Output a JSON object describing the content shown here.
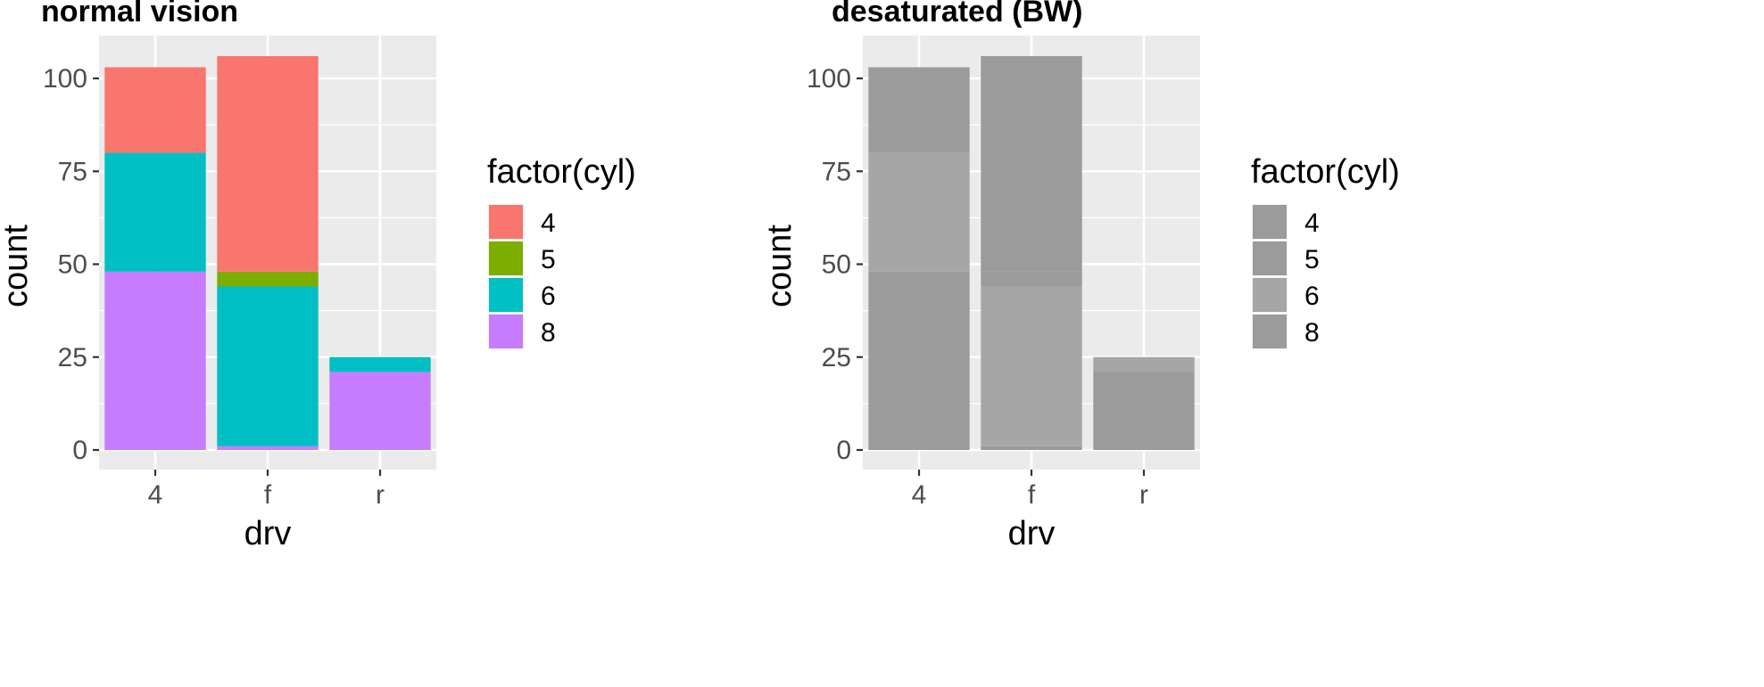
{
  "chart_data": [
    {
      "type": "bar",
      "stacked": true,
      "title": "normal vision",
      "xlabel": "drv",
      "ylabel": "count",
      "categories": [
        "4",
        "f",
        "r"
      ],
      "yticks": [
        0,
        25,
        50,
        75,
        100
      ],
      "ylim": [
        0,
        106
      ],
      "grid": true,
      "legend": {
        "title": "factor(cyl)",
        "placement": "right"
      },
      "series": [
        {
          "name": "4",
          "color": "#F8766D",
          "values": [
            23,
            58,
            0
          ]
        },
        {
          "name": "5",
          "color": "#7CAE00",
          "values": [
            0,
            4,
            0
          ]
        },
        {
          "name": "6",
          "color": "#00BFC4",
          "values": [
            32,
            43,
            4
          ]
        },
        {
          "name": "8",
          "color": "#C77CFF",
          "values": [
            48,
            1,
            21
          ]
        }
      ]
    },
    {
      "type": "bar",
      "stacked": true,
      "title": "desaturated (BW)",
      "xlabel": "drv",
      "ylabel": "count",
      "categories": [
        "4",
        "f",
        "r"
      ],
      "yticks": [
        0,
        25,
        50,
        75,
        100
      ],
      "ylim": [
        0,
        106
      ],
      "grid": true,
      "legend": {
        "title": "factor(cyl)",
        "placement": "right"
      },
      "series": [
        {
          "name": "4",
          "color": "#9b9b9b",
          "values": [
            23,
            58,
            0
          ]
        },
        {
          "name": "5",
          "color": "#9b9b9b",
          "values": [
            0,
            4,
            0
          ]
        },
        {
          "name": "6",
          "color": "#a6a6a6",
          "values": [
            32,
            43,
            4
          ]
        },
        {
          "name": "8",
          "color": "#9b9b9b",
          "values": [
            48,
            1,
            21
          ]
        }
      ]
    }
  ],
  "theme": {
    "panel_background": "#EBEBEB",
    "grid_color": "#ffffff",
    "tick_color": "#333333"
  }
}
